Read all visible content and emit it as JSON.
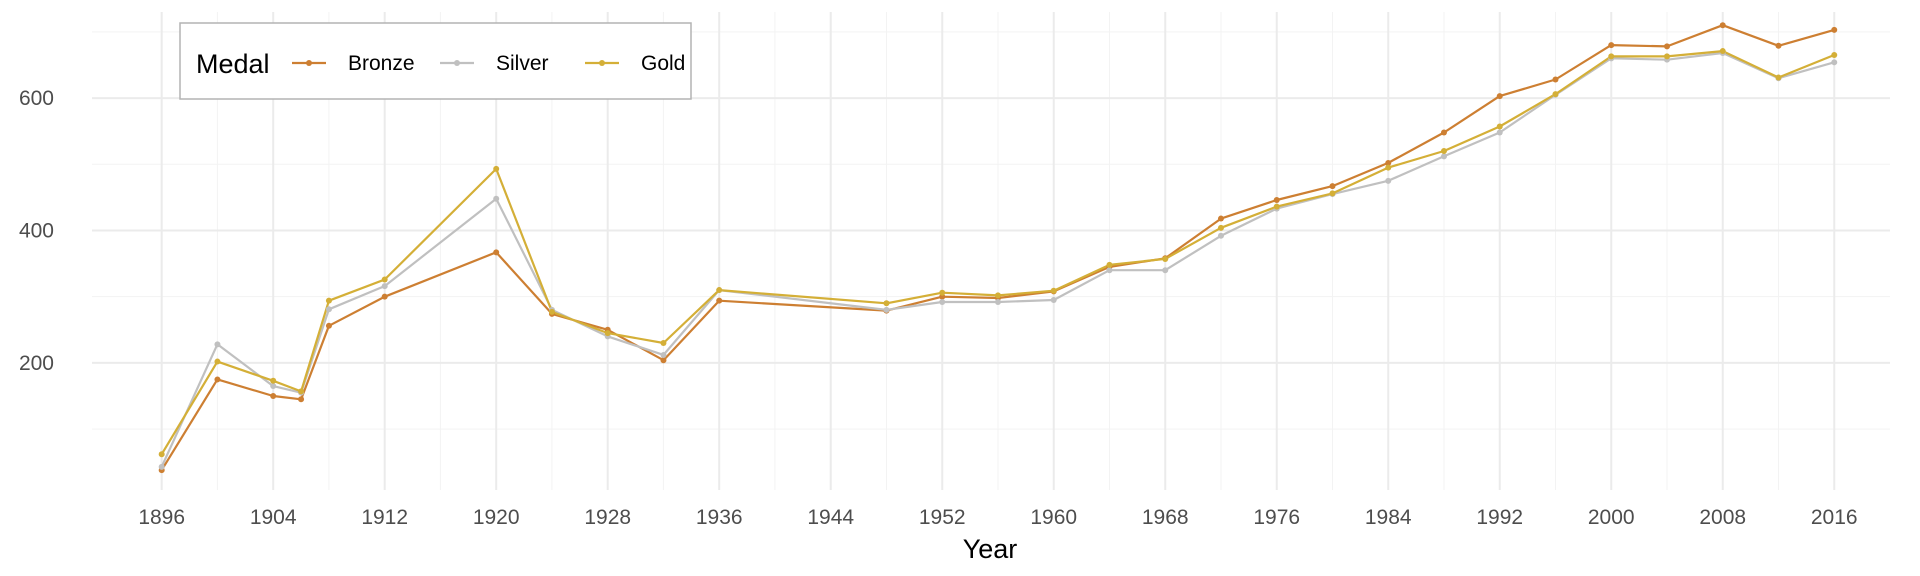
{
  "chart_data": {
    "type": "line",
    "title": "",
    "xlabel": "Year",
    "ylabel": "",
    "x": [
      1896,
      1900,
      1904,
      1906,
      1908,
      1912,
      1920,
      1924,
      1928,
      1932,
      1936,
      1948,
      1952,
      1956,
      1960,
      1964,
      1968,
      1972,
      1976,
      1980,
      1984,
      1988,
      1992,
      1996,
      2000,
      2004,
      2008,
      2012,
      2016
    ],
    "x_ticks": [
      1896,
      1904,
      1912,
      1920,
      1928,
      1936,
      1944,
      1952,
      1960,
      1968,
      1976,
      1984,
      1992,
      2000,
      2008,
      2016
    ],
    "xlim": [
      1891,
      2020
    ],
    "y_ticks": [
      200,
      400,
      600
    ],
    "ylim": [
      8,
      730
    ],
    "grid": true,
    "legend": {
      "title": "Medal",
      "position": "top-left"
    },
    "series": [
      {
        "name": "Bronze",
        "color": "#cd7f32",
        "values": [
          38,
          175,
          150,
          145,
          256,
          300,
          367,
          274,
          250,
          204,
          294,
          279,
          300,
          298,
          308,
          345,
          358,
          418,
          446,
          467,
          502,
          548,
          603,
          628,
          680,
          678,
          710,
          679,
          703
        ]
      },
      {
        "name": "Silver",
        "color": "#c0c0c0",
        "values": [
          43,
          228,
          165,
          155,
          281,
          316,
          448,
          280,
          240,
          212,
          310,
          280,
          292,
          292,
          295,
          340,
          340,
          392,
          433,
          455,
          475,
          512,
          548,
          605,
          660,
          658,
          668,
          630,
          654
        ]
      },
      {
        "name": "Gold",
        "color": "#d4af37",
        "values": [
          62,
          202,
          173,
          157,
          294,
          326,
          493,
          277,
          245,
          230,
          310,
          290,
          306,
          302,
          309,
          348,
          357,
          404,
          436,
          456,
          495,
          520,
          557,
          606,
          663,
          663,
          671,
          631,
          665
        ]
      }
    ]
  }
}
